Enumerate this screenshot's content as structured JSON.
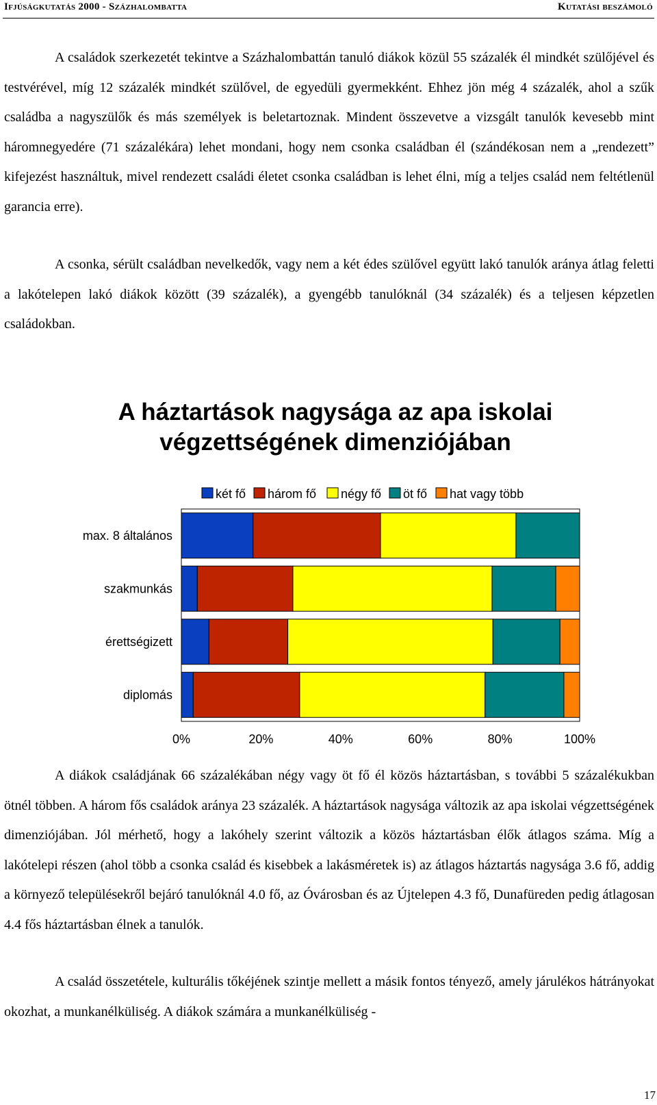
{
  "header": {
    "left": "Ifjúságkutatás 2000 - Százhalombatta",
    "right": "Kutatási beszámoló"
  },
  "paragraphs": {
    "p1": "A családok szerkezetét tekintve a Százhalombattán tanuló diákok közül 55 százalék él mindkét szülőjével és testvérével, míg 12 százalék mindkét szülővel, de egyedüli gyermekként. Ehhez jön még 4 százalék, ahol a szűk családba a nagyszülők és más személyek is beletartoznak. Mindent összevetve a vizsgált tanulók kevesebb mint háromnegyedére (71 százalékára) lehet mondani, hogy nem csonka családban él (szándékosan nem a „rendezett” kifejezést használtuk, mivel rendezett családi életet csonka családban is lehet élni, míg a teljes család nem feltétlenül garancia erre).",
    "p2": "A csonka, sérült családban nevelkedők, vagy nem a két édes szülővel együtt lakó tanulók aránya átlag feletti a lakótelepen lakó diákok között (39 százalék), a gyengébb tanulóknál (34 százalék) és a teljesen képzetlen családokban.",
    "p3": "A diákok családjának 66 százalékában négy vagy öt fő él közös háztartásban, s további 5 százalékukban ötnél többen. A három fős családok aránya 23 százalék. A háztartások nagysága változik az apa iskolai végzettségének dimenziójában. Jól mérhető, hogy a lakóhely szerint változik a közös háztartásban élők átlagos száma. Míg a lakótelepi részen (ahol több a csonka család és kisebbek a lakásméretek is) az átlagos háztartás nagysága 3.6 fő, addig a környező településekről bejáró tanulóknál 4.0 fő, az Óvárosban és az Újtelepen 4.3 fő, Dunafüreden pedig átlagosan 4.4 fős háztartásban élnek a tanulók.",
    "p4": "A család összetétele, kulturális tőkéjének szintje mellett a másik fontos tényező, amely járulékos hátrányokat okozhat, a munkanélküliség. A diákok számára a munkanélküliség -"
  },
  "page_number": "17",
  "chart_data": {
    "type": "bar",
    "orientation": "horizontal",
    "stacked": "100%",
    "title": "A háztartások nagysága az apa iskolai végzettségének dimenziójában",
    "title_lines": [
      "A háztartások nagysága az apa iskolai",
      "végzettségének dimenziójában"
    ],
    "categories": [
      "max. 8 általános",
      "szakmunkás",
      "érettségizett",
      "diplomás"
    ],
    "series": [
      {
        "name": "két fő",
        "color": "#0A3FBF",
        "values": [
          18,
          4,
          7,
          3
        ]
      },
      {
        "name": "három fő",
        "color": "#BF2400",
        "values": [
          32,
          24,
          20,
          27
        ]
      },
      {
        "name": "négy fő",
        "color": "#FFFF00",
        "values": [
          34,
          50,
          52,
          47
        ]
      },
      {
        "name": "öt fő",
        "color": "#008080",
        "values": [
          16,
          16,
          17,
          20
        ]
      },
      {
        "name": "hat vagy több",
        "color": "#FF8000",
        "values": [
          0,
          6,
          5,
          4
        ]
      }
    ],
    "xlim": [
      0,
      100
    ],
    "x_ticks": [
      "0%",
      "20%",
      "40%",
      "60%",
      "80%",
      "100%"
    ],
    "legend_position": "top-right",
    "grid": false
  }
}
